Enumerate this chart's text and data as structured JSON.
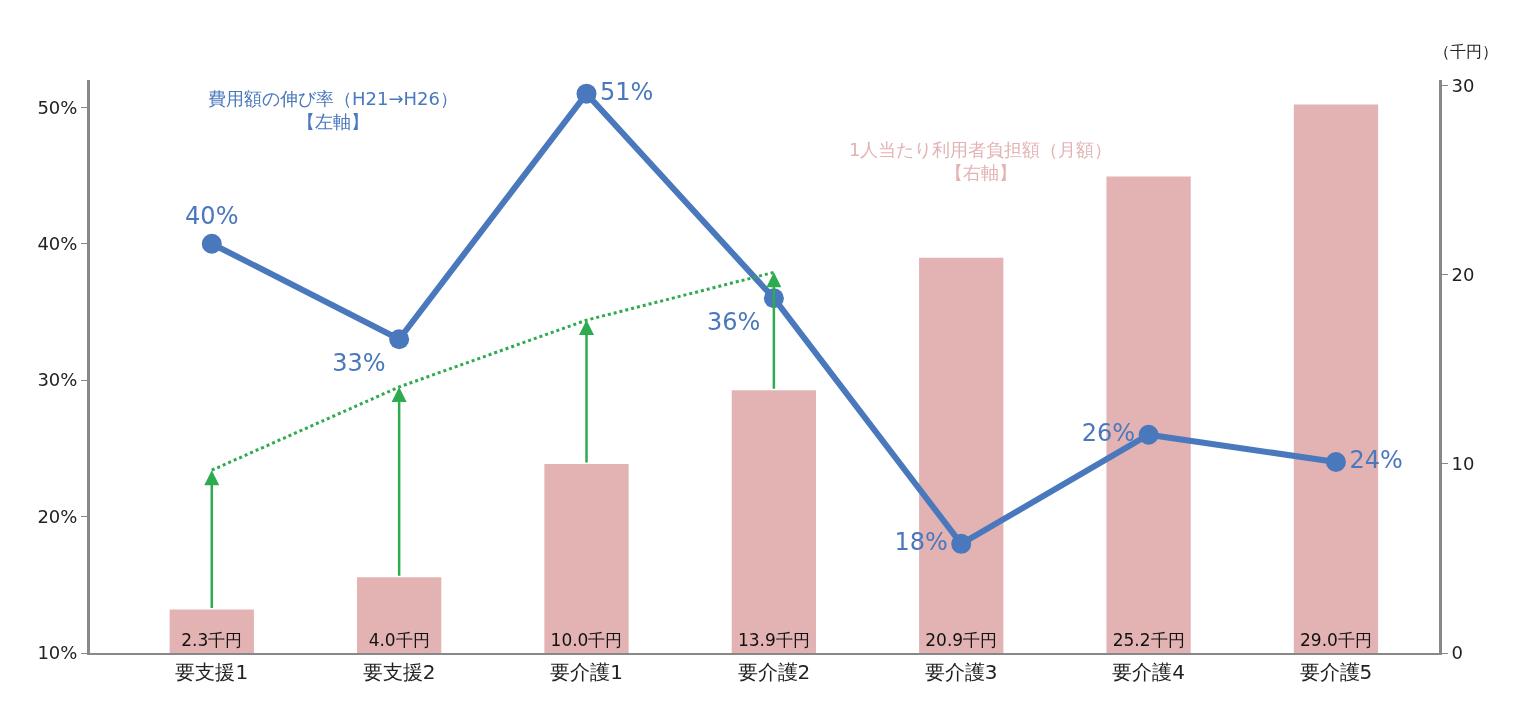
{
  "chart_data": {
    "type": "bar",
    "categories": [
      "要支援1",
      "要支援2",
      "要介護1",
      "要介護2",
      "要介護3",
      "要介護4",
      "要介護5"
    ],
    "y2label": "（千円）",
    "ylim": [
      10,
      52
    ],
    "yticks": [
      {
        "value": 10,
        "label": "10%"
      },
      {
        "value": 20,
        "label": "20%"
      },
      {
        "value": 30,
        "label": "30%"
      },
      {
        "value": 40,
        "label": "40%"
      },
      {
        "value": 50,
        "label": "50%"
      }
    ],
    "y2lim": [
      0,
      30.3
    ],
    "y2ticks": [
      0,
      10,
      20,
      30
    ],
    "legend": false,
    "series": [
      {
        "name": "1人当たり利用者負担額（月額）【右軸】",
        "axis": "y2",
        "color": "#e3b3b3",
        "values": [
          2.3,
          4.0,
          10.0,
          13.9,
          20.9,
          25.2,
          29.0
        ],
        "value_labels": [
          "2.3千円",
          "4.0千円",
          "10.0千円",
          "13.9千円",
          "20.9千円",
          "25.2千円",
          "29.0千円"
        ]
      },
      {
        "name": "費用額の伸び率（H21→H26）【左軸】",
        "type": "line",
        "color": "#4a78bd",
        "marker": "circle",
        "values": [
          40,
          33,
          51,
          36,
          18,
          26,
          24
        ],
        "value_labels": [
          "40%",
          "33%",
          "51%",
          "36%",
          "18%",
          "26%",
          "24%"
        ]
      },
      {
        "type": "line",
        "color": "#2eaa4f",
        "line_style": "dotted",
        "marker": "none",
        "values": [
          23.4,
          29.5,
          34.4,
          37.9,
          null,
          null,
          null
        ]
      }
    ]
  }
}
